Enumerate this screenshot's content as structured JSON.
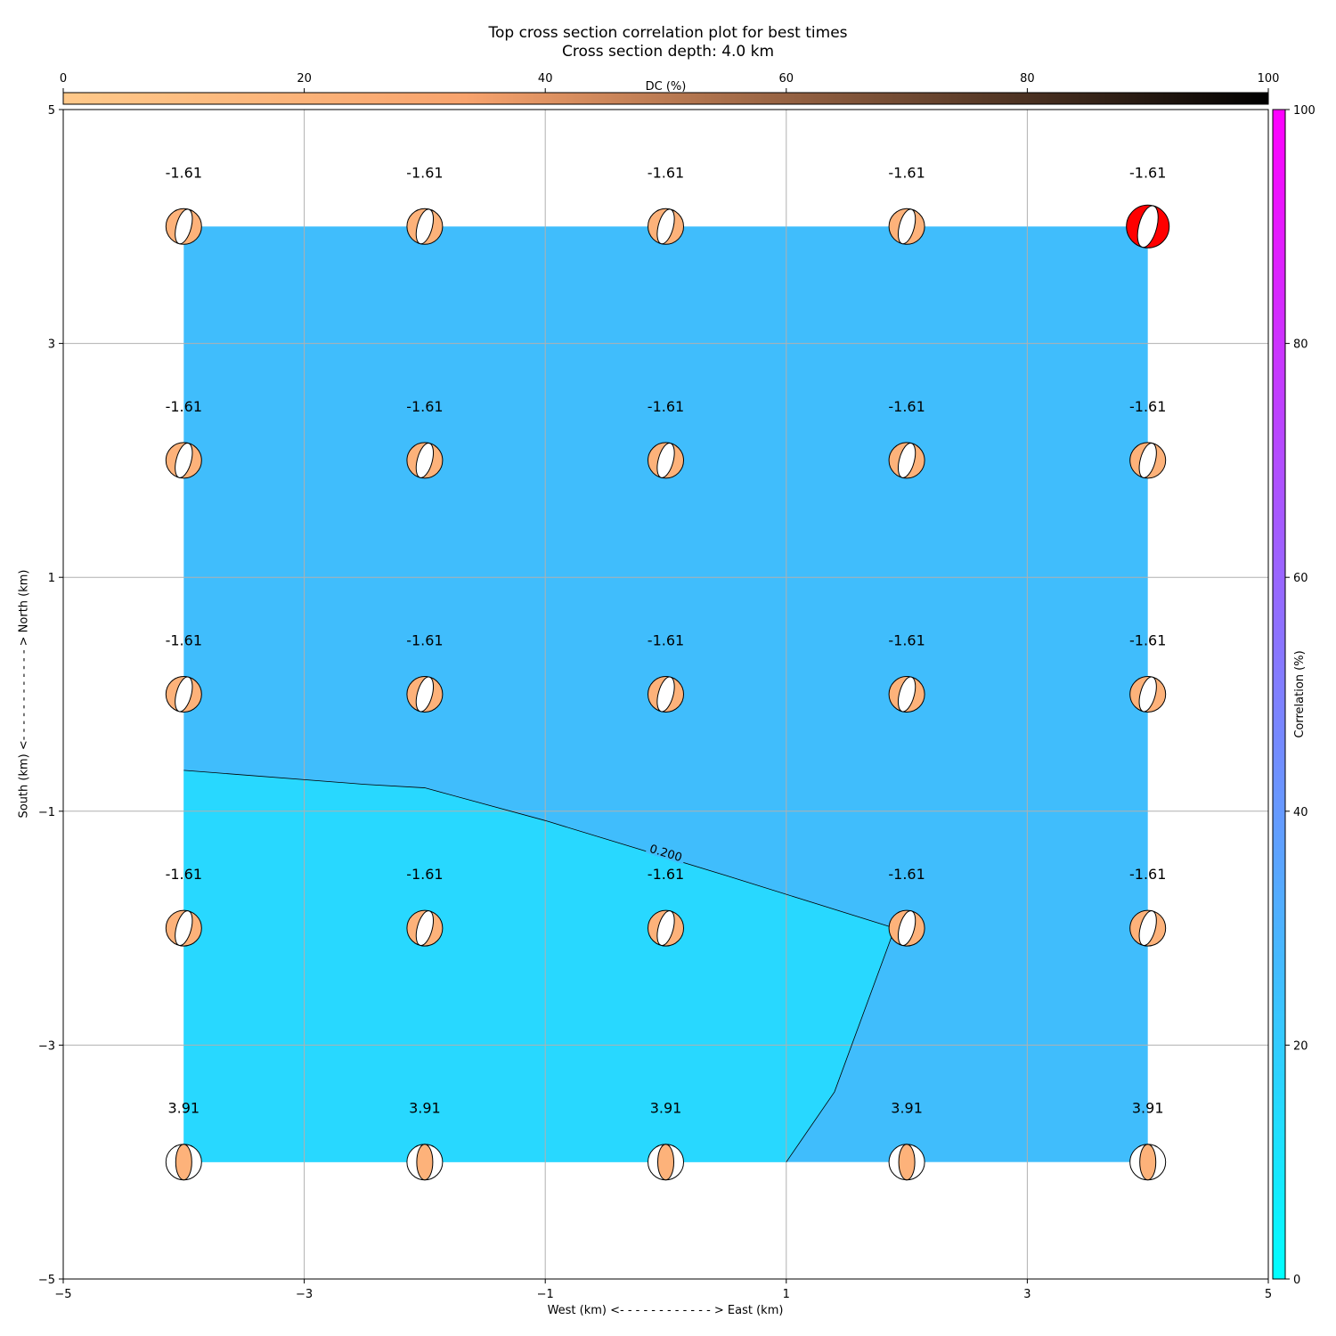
{
  "title_line1": "Top cross section correlation plot for best times",
  "title_line2": "Cross section depth: 4.0 km",
  "chart_data": {
    "type": "heatmap",
    "title": "Top cross section correlation plot for best times",
    "subtitle": "Cross section depth: 4.0 km",
    "xlabel": "West (km) <- - - - - - - - - - - - > East (km)",
    "ylabel": "South (km) <- - - - - - - - - - - - > North (km)",
    "xlim": [
      -5,
      5
    ],
    "ylim": [
      -5,
      5
    ],
    "xticks": [
      "−5",
      "−3",
      "−1",
      "1",
      "3",
      "5"
    ],
    "yticks": [
      "−5",
      "−3",
      "−1",
      "1",
      "3",
      "5"
    ],
    "xtick_values": [
      -5,
      -3,
      -1,
      1,
      3,
      5
    ],
    "ytick_values": [
      -5,
      -3,
      -1,
      1,
      3,
      5
    ],
    "grid": true,
    "x": [
      -4,
      -2,
      0,
      2,
      4
    ],
    "y": [
      4,
      2,
      0,
      -2,
      -4
    ],
    "correlation_region_colors": [
      "#40bdfc",
      "#28d8ff"
    ],
    "contour_label": "0.200",
    "contour_line": [
      [
        -4,
        -0.65
      ],
      [
        -2.5,
        -0.77
      ],
      [
        -2,
        -0.8
      ],
      [
        -1,
        -1.08
      ],
      [
        0.5,
        -1.55
      ],
      [
        1.9,
        -2.0
      ],
      [
        1.4,
        -3.4
      ],
      [
        1.0,
        -4.0
      ]
    ],
    "annotations": [
      [
        "-1.61",
        "-1.61",
        "-1.61",
        "-1.61",
        "-1.61"
      ],
      [
        "-1.61",
        "-1.61",
        "-1.61",
        "-1.61",
        "-1.61"
      ],
      [
        "-1.61",
        "-1.61",
        "-1.61",
        "-1.61",
        "-1.61"
      ],
      [
        "-1.61",
        "-1.61",
        "-1.61",
        "-1.61",
        "-1.61"
      ],
      [
        "3.91",
        "3.91",
        "3.91",
        "3.91",
        "3.91"
      ]
    ],
    "best_solution": {
      "x": 4,
      "y": 4,
      "color": "#ff0000"
    },
    "beachball_color": "#fdb27a",
    "dc_colorbar": {
      "label": "DC (%)",
      "ticks": [
        "0",
        "20",
        "40",
        "60",
        "80",
        "100"
      ],
      "range": [
        0,
        100
      ],
      "colors": [
        "#ffc98a",
        "#f8a36d",
        "#7d5238",
        "#000000"
      ]
    },
    "correlation_colorbar": {
      "label": "Correlation (%)",
      "ticks": [
        "0",
        "20",
        "40",
        "60",
        "80",
        "100"
      ],
      "range": [
        0,
        100
      ],
      "colors": [
        "#00ffff",
        "#ff00ff"
      ]
    }
  }
}
